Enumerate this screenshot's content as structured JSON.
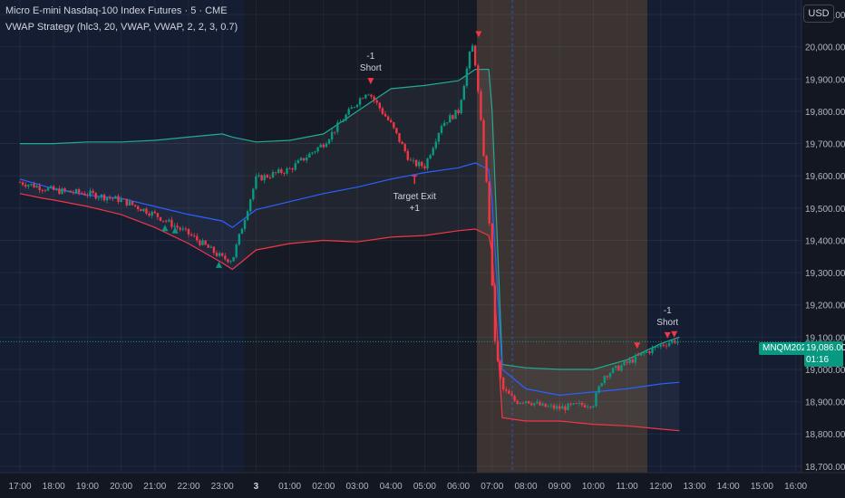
{
  "header": {
    "title": "Micro E-mini Nasdaq-100 Index Futures · 5 · CME",
    "indicator": "VWAP Strategy (hlc3, 20, VWAP, VWAP, 2, 2, 3, 0.7)"
  },
  "currency_button": "USD",
  "symbol_tag": "MNQM2025",
  "last_price": "19,086.00",
  "countdown": "01:16",
  "chart_data": {
    "type": "candlestick",
    "title": "Micro E-mini Nasdaq-100 Index Futures · 5 · CME",
    "ylim": [
      18680,
      20145
    ],
    "y_ticks": [
      "18,700.00",
      "18,800.00",
      "18,900.00",
      "19,000.00",
      "19,100.00",
      "19,200.00",
      "19,300.00",
      "19,400.00",
      "19,500.00",
      "19,600.00",
      "19,700.00",
      "19,800.00",
      "19,900.00",
      "20,000.00",
      "20,100.00"
    ],
    "y_tick_values": [
      18700,
      18800,
      18900,
      19000,
      19100,
      19200,
      19300,
      19400,
      19500,
      19600,
      19700,
      19800,
      19900,
      20000,
      20100
    ],
    "x_ticks": [
      "17:00",
      "18:00",
      "19:00",
      "20:00",
      "21:00",
      "22:00",
      "23:00",
      "3",
      "01:00",
      "02:00",
      "03:00",
      "04:00",
      "05:00",
      "06:00",
      "07:00",
      "08:00",
      "09:00",
      "10:00",
      "11:00",
      "12:00",
      "13:00",
      "14:00",
      "15:00",
      "16:00"
    ],
    "x_hours": [
      17,
      18,
      19,
      20,
      21,
      22,
      23,
      24,
      25,
      26,
      27,
      28,
      29,
      30,
      31,
      32,
      33,
      34,
      35,
      36,
      37,
      38,
      39,
      40
    ],
    "last_price": 19086,
    "series": [
      {
        "name": "close_path",
        "x": [
          17,
          18,
          19,
          20,
          21,
          22,
          23,
          23.3,
          24,
          25,
          26,
          27,
          27.3,
          28,
          28.6,
          29,
          29.5,
          30,
          30.4,
          30.5,
          30.9,
          31.0,
          31.1,
          31.3,
          31.7,
          32.0,
          32.5,
          33,
          34,
          34.3,
          35,
          35.5,
          36,
          36.4,
          36.55
        ],
        "values": [
          19580,
          19555,
          19545,
          19525,
          19480,
          19420,
          19345,
          19340,
          19590,
          19620,
          19700,
          19830,
          19865,
          19760,
          19640,
          19630,
          19760,
          19800,
          20010,
          19950,
          19500,
          19250,
          19060,
          18940,
          18900,
          18905,
          18885,
          18880,
          18895,
          18980,
          19020,
          19050,
          19075,
          19090,
          19086
        ]
      },
      {
        "name": "vwap",
        "x": [
          17,
          18,
          19,
          20,
          21,
          22,
          23,
          23.3,
          24,
          25,
          26,
          27,
          28,
          29,
          30,
          30.5,
          30.9,
          31.0,
          31.3,
          32,
          33,
          34,
          35,
          36,
          36.55
        ],
        "values": [
          19590,
          19560,
          19540,
          19530,
          19505,
          19480,
          19460,
          19440,
          19495,
          19520,
          19545,
          19565,
          19590,
          19610,
          19625,
          19640,
          19620,
          19520,
          19000,
          18940,
          18920,
          18930,
          18940,
          18955,
          18960
        ]
      },
      {
        "name": "upper_band",
        "x": [
          17,
          18,
          19,
          20,
          21,
          22,
          23,
          23.3,
          24,
          25,
          26,
          27,
          28,
          29,
          30,
          30.5,
          30.9,
          31.0,
          31.3,
          32,
          33,
          34,
          35,
          36,
          36.55
        ],
        "values": [
          19700,
          19700,
          19705,
          19705,
          19710,
          19720,
          19730,
          19720,
          19705,
          19710,
          19730,
          19800,
          19870,
          19880,
          19895,
          19930,
          19930,
          19800,
          19015,
          19005,
          19000,
          19000,
          19030,
          19080,
          19100
        ]
      },
      {
        "name": "lower_band",
        "x": [
          17,
          17.7,
          18,
          19,
          20,
          21,
          22,
          23,
          23.3,
          24,
          25,
          26,
          27,
          28,
          29,
          30,
          30.5,
          30.9,
          31.0,
          31.3,
          32,
          33,
          34,
          35,
          36,
          36.55
        ],
        "values": [
          19545,
          19530,
          19525,
          19505,
          19480,
          19440,
          19390,
          19330,
          19310,
          19370,
          19390,
          19400,
          19395,
          19410,
          19415,
          19430,
          19435,
          19415,
          19360,
          18850,
          18840,
          18840,
          18830,
          18825,
          18815,
          18810
        ]
      }
    ],
    "signals": [
      {
        "type": "long",
        "x": 21.3,
        "value": 19437
      },
      {
        "type": "long",
        "x": 21.6,
        "value": 19430
      },
      {
        "type": "long",
        "x": 22.9,
        "value": 19323
      },
      {
        "type": "short",
        "x": 27.4,
        "value": 19895,
        "label": "Short",
        "qty": "-1"
      },
      {
        "type": "exit",
        "x": 28.7,
        "value": 19600,
        "label": "Target Exit",
        "qty": "+1"
      },
      {
        "type": "short",
        "x": 30.6,
        "value": 20040
      },
      {
        "type": "short",
        "x": 35.3,
        "value": 19075
      },
      {
        "type": "short",
        "x": 36.2,
        "value": 19107,
        "label": "Short",
        "qty": "-1"
      },
      {
        "type": "short",
        "x": 36.4,
        "value": 19110
      }
    ],
    "sessions": [
      {
        "from": 23.65,
        "to": 30.55,
        "kind": "dark"
      },
      {
        "from": 30.55,
        "to": 35.6,
        "kind": "orange"
      }
    ],
    "grid": true,
    "legend": "none"
  },
  "colors": {
    "up": "#089981",
    "down": "#f23645",
    "vwap": "#2962ff",
    "upper_band": "#22ab94",
    "lower_band": "#f23645",
    "background": "#131722"
  }
}
